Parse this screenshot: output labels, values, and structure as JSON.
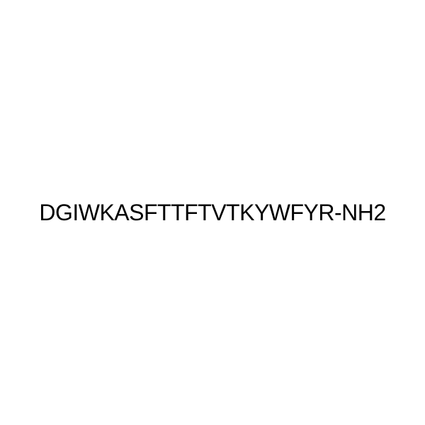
{
  "sequence": {
    "text": "DGIWKASFTTFTVTKYWFYR-NH2",
    "font_size": 32,
    "font_weight": 400,
    "color": "#000000",
    "background_color": "#ffffff",
    "letter_spacing": -0.5
  }
}
